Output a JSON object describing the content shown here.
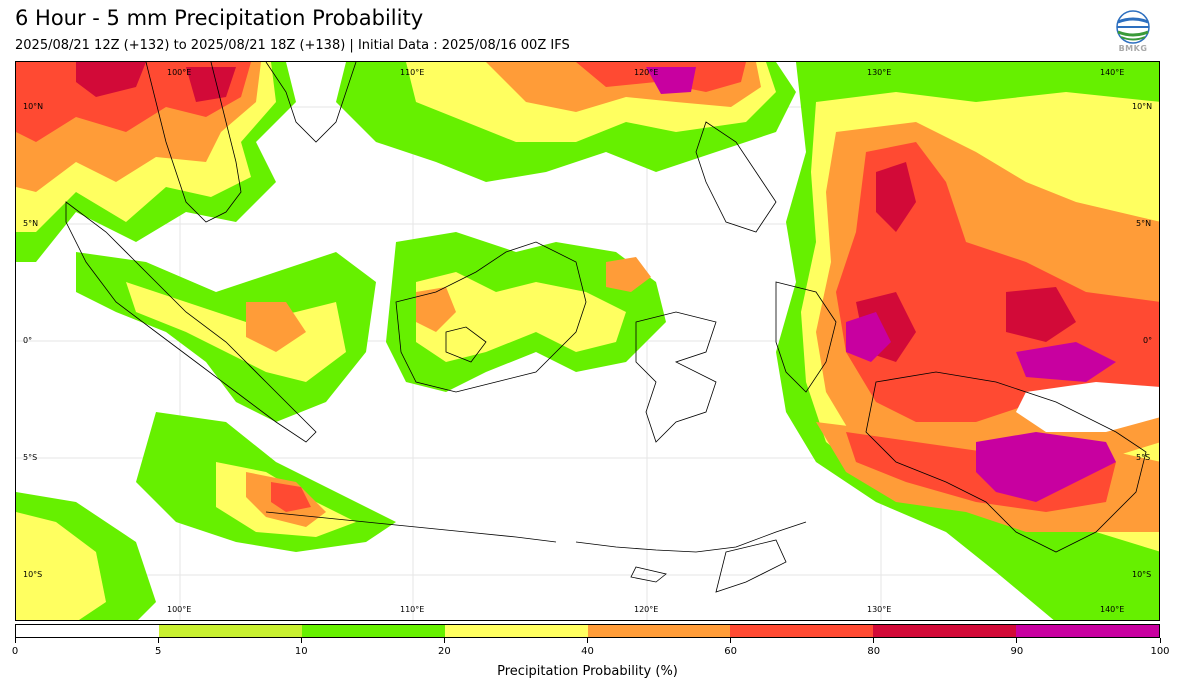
{
  "header": {
    "title": "6 Hour - 5 mm Precipitation Probability",
    "subtitle": "2025/08/21 12Z (+132) to 2025/08/21 18Z (+138) | Initial Data : 2025/08/16 00Z IFS",
    "logo_text": "BMKG"
  },
  "map": {
    "lon_range": [
      93,
      142
    ],
    "lat_range": [
      -12,
      12
    ],
    "top_lon_labels": [
      "100°E",
      "110°E",
      "120°E",
      "130°E",
      "140°E"
    ],
    "bottom_lon_labels": [
      "100°E",
      "110°E",
      "120°E",
      "130°E",
      "140°E"
    ],
    "left_lat_labels": [
      "10°N",
      "5°N",
      "0°",
      "5°S",
      "10°S"
    ],
    "right_lat_labels": [
      "10°N",
      "5°N",
      "0°",
      "5°S",
      "10°S"
    ],
    "colors": {
      "p5": "#c8f030",
      "p10": "#66f000",
      "p20": "#ffff60",
      "p40": "#ff9c38",
      "p60": "#ff4a32",
      "p80": "#d20a38",
      "p90": "#c800a0"
    }
  },
  "colorbar": {
    "title": "Precipitation Probability (%)",
    "ticks": [
      "0",
      "5",
      "10",
      "20",
      "40",
      "60",
      "80",
      "90",
      "100"
    ],
    "colors": [
      "#ffffff",
      "#c8f030",
      "#66f000",
      "#ffff60",
      "#ff9c38",
      "#ff4a32",
      "#d20a38",
      "#c800a0"
    ]
  }
}
